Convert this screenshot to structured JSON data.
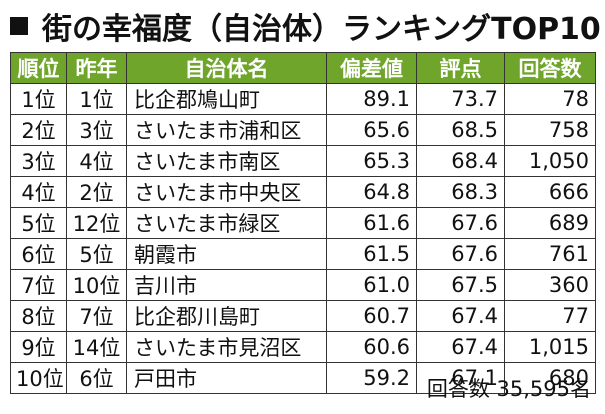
{
  "title": "街の幸福度（自治体）ランキングTOP10",
  "headers": [
    "順位",
    "昨年",
    "自治体名",
    "偏差値",
    "評点",
    "回答数"
  ],
  "rows": [
    {
      "rank": "1位",
      "last_year": "1位",
      "name": "比企郡鳩山町",
      "deviation": "89.1",
      "score": "73.7",
      "responses": "78"
    },
    {
      "rank": "2位",
      "last_year": "3位",
      "name": "さいたま市浦和区",
      "deviation": "65.6",
      "score": "68.5",
      "responses": "758"
    },
    {
      "rank": "3位",
      "last_year": "4位",
      "name": "さいたま市南区",
      "deviation": "65.3",
      "score": "68.4",
      "responses": "1,050"
    },
    {
      "rank": "4位",
      "last_year": "2位",
      "name": "さいたま市中央区",
      "deviation": "64.8",
      "score": "68.3",
      "responses": "666"
    },
    {
      "rank": "5位",
      "last_year": "12位",
      "name": "さいたま市緑区",
      "deviation": "61.6",
      "score": "67.6",
      "responses": "689"
    },
    {
      "rank": "6位",
      "last_year": "5位",
      "name": "朝霞市",
      "deviation": "61.5",
      "score": "67.6",
      "responses": "761"
    },
    {
      "rank": "7位",
      "last_year": "10位",
      "name": "吉川市",
      "deviation": "61.0",
      "score": "67.5",
      "responses": "360"
    },
    {
      "rank": "8位",
      "last_year": "7位",
      "name": "比企郡川島町",
      "deviation": "60.7",
      "score": "67.4",
      "responses": "77"
    },
    {
      "rank": "9位",
      "last_year": "14位",
      "name": "さいたま市見沼区",
      "deviation": "60.6",
      "score": "67.4",
      "responses": "1,015"
    },
    {
      "rank": "10位",
      "last_year": "6位",
      "name": "戸田市",
      "deviation": "59.2",
      "score": "67.1",
      "responses": "680"
    }
  ],
  "footnote": "回答数 35,595名",
  "colors": {
    "header_bg": "#6fa52b",
    "header_text": "#ffffff"
  }
}
